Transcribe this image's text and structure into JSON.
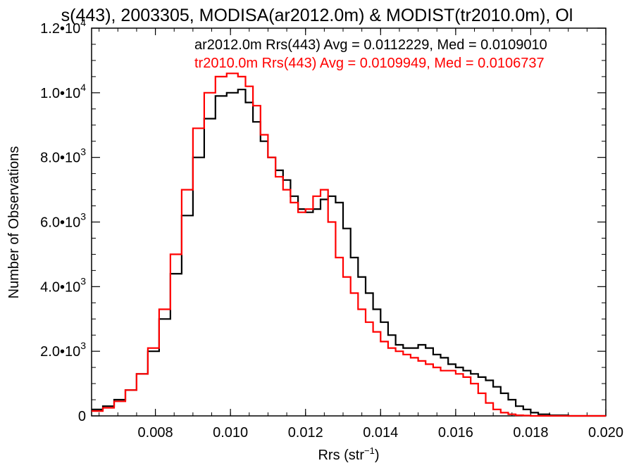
{
  "chart_data": {
    "type": "line",
    "title": "s(443), 2003305, MODISA(ar2012.0m) & MODIST(tr2010.0m), Ol",
    "xlabel": "Rrs (str",
    "xlabel_sup": "−1",
    "xlabel_close": ")",
    "ylabel": "Number of Observations",
    "xlim": [
      0.0063,
      0.02
    ],
    "ylim": [
      0,
      12000
    ],
    "grid": false,
    "legend_placement": "top-right",
    "x_ticks": [
      {
        "value": 0.008,
        "label": "0.008"
      },
      {
        "value": 0.01,
        "label": "0.010"
      },
      {
        "value": 0.012,
        "label": "0.012"
      },
      {
        "value": 0.014,
        "label": "0.014"
      },
      {
        "value": 0.016,
        "label": "0.016"
      },
      {
        "value": 0.018,
        "label": "0.018"
      },
      {
        "value": 0.02,
        "label": "0.020"
      }
    ],
    "y_ticks": [
      {
        "value": 0,
        "mant": "0",
        "exp": ""
      },
      {
        "value": 2000,
        "mant": "2.0•10",
        "exp": "3"
      },
      {
        "value": 4000,
        "mant": "4.0•10",
        "exp": "3"
      },
      {
        "value": 6000,
        "mant": "6.0•10",
        "exp": "3"
      },
      {
        "value": 8000,
        "mant": "8.0•10",
        "exp": "3"
      },
      {
        "value": 10000,
        "mant": "1.0•10",
        "exp": "4"
      },
      {
        "value": 12000,
        "mant": "1.2•10",
        "exp": "4"
      }
    ],
    "series": [
      {
        "name": "ar2012.0m Rrs(443) Avg = 0.0112229, Med = 0.0109010",
        "color": "#000000",
        "x": [
          0.0063,
          0.0066,
          0.0069,
          0.0072,
          0.0075,
          0.0078,
          0.0081,
          0.0084,
          0.0087,
          0.009,
          0.0093,
          0.0096,
          0.0099,
          0.0102,
          0.0104,
          0.0106,
          0.0108,
          0.011,
          0.0112,
          0.0114,
          0.0116,
          0.0118,
          0.012,
          0.0122,
          0.0124,
          0.0126,
          0.0128,
          0.013,
          0.0132,
          0.0134,
          0.0136,
          0.0138,
          0.014,
          0.0142,
          0.0144,
          0.0146,
          0.0148,
          0.015,
          0.0152,
          0.0154,
          0.0156,
          0.0158,
          0.016,
          0.0162,
          0.0164,
          0.0166,
          0.0168,
          0.017,
          0.0172,
          0.0174,
          0.0176,
          0.0178,
          0.018,
          0.0182,
          0.0185,
          0.019,
          0.02
        ],
        "y": [
          200,
          300,
          500,
          800,
          1300,
          2000,
          3000,
          4400,
          6200,
          8000,
          9200,
          9900,
          10000,
          10100,
          9700,
          9100,
          8500,
          8000,
          7600,
          7300,
          6800,
          6400,
          6300,
          6400,
          6700,
          6800,
          6600,
          5800,
          4900,
          4300,
          3800,
          3300,
          2900,
          2500,
          2200,
          2100,
          2100,
          2200,
          2100,
          1900,
          1800,
          1600,
          1500,
          1400,
          1300,
          1200,
          1100,
          900,
          700,
          500,
          300,
          200,
          100,
          50,
          20,
          0,
          0
        ]
      },
      {
        "name": "tr2010.0m Rrs(443) Avg = 0.0109949, Med = 0.0106737",
        "color": "#ff0000",
        "x": [
          0.0063,
          0.0066,
          0.0069,
          0.0072,
          0.0075,
          0.0078,
          0.0081,
          0.0084,
          0.0087,
          0.009,
          0.0093,
          0.0096,
          0.0099,
          0.0102,
          0.0104,
          0.0106,
          0.0108,
          0.011,
          0.0112,
          0.0114,
          0.0116,
          0.0118,
          0.012,
          0.0122,
          0.0124,
          0.0126,
          0.0128,
          0.013,
          0.0132,
          0.0134,
          0.0136,
          0.0138,
          0.014,
          0.0142,
          0.0144,
          0.0146,
          0.0148,
          0.015,
          0.0152,
          0.0154,
          0.0156,
          0.0158,
          0.016,
          0.0162,
          0.0164,
          0.0166,
          0.0168,
          0.017,
          0.0172,
          0.0174,
          0.0176,
          0.0178,
          0.018,
          0.0185,
          0.019,
          0.02
        ],
        "y": [
          150,
          250,
          450,
          800,
          1300,
          2100,
          3300,
          5000,
          7000,
          8900,
          10000,
          10500,
          10600,
          10500,
          10200,
          9600,
          8700,
          8000,
          7400,
          7000,
          6600,
          6300,
          6400,
          6800,
          7000,
          6000,
          4900,
          4300,
          3800,
          3300,
          2900,
          2600,
          2300,
          2100,
          2000,
          1900,
          1800,
          1700,
          1600,
          1500,
          1400,
          1400,
          1300,
          1200,
          1000,
          700,
          400,
          200,
          100,
          50,
          20,
          10,
          0,
          0,
          0,
          0
        ]
      }
    ]
  }
}
